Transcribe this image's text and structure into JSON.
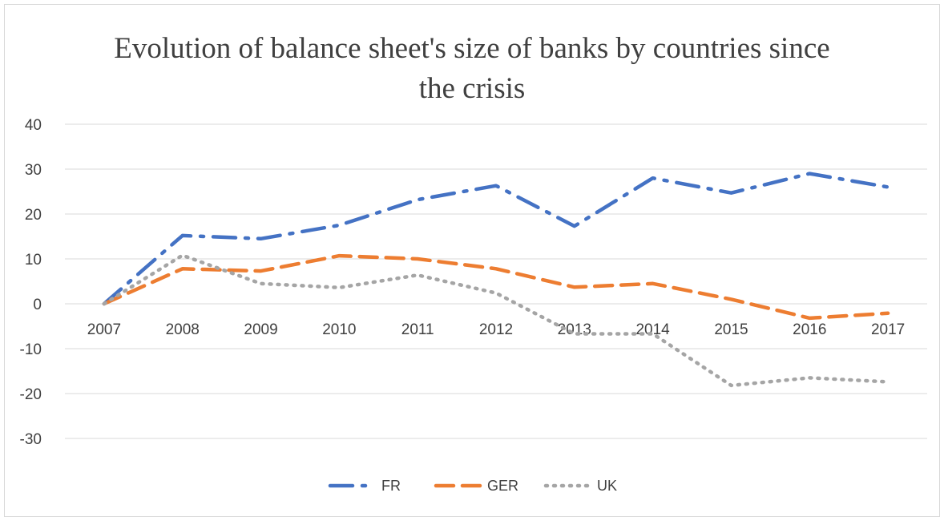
{
  "chart_data": {
    "type": "line",
    "title": "Evolution of balance sheet's size of banks by countries since the crisis",
    "title_lines": [
      "Evolution of balance sheet's size of banks by countries since",
      "the crisis"
    ],
    "categories": [
      "2007",
      "2008",
      "2009",
      "2010",
      "2011",
      "2012",
      "2013",
      "2014",
      "2015",
      "2016",
      "2017"
    ],
    "ylim": [
      -30,
      40
    ],
    "yticks": [
      -30,
      -20,
      -10,
      0,
      10,
      20,
      30,
      40
    ],
    "grid": true,
    "legend_position": "bottom",
    "series": [
      {
        "name": "FR",
        "color": "#4472c4",
        "dash": "long-dash-dot",
        "values": [
          0,
          15.2,
          14.5,
          17.5,
          23.2,
          26.3,
          17.3,
          28.0,
          24.7,
          29.0,
          26.0
        ]
      },
      {
        "name": "GER",
        "color": "#ed7d31",
        "dash": "dash",
        "values": [
          0,
          7.8,
          7.3,
          10.7,
          10.0,
          7.8,
          3.7,
          4.5,
          1.0,
          -3.2,
          -2.1
        ]
      },
      {
        "name": "UK",
        "color": "#a5a5a5",
        "dash": "dot",
        "values": [
          0,
          10.8,
          4.5,
          3.6,
          6.4,
          2.4,
          -6.7,
          -6.7,
          -18.2,
          -16.5,
          -17.4
        ]
      }
    ]
  }
}
